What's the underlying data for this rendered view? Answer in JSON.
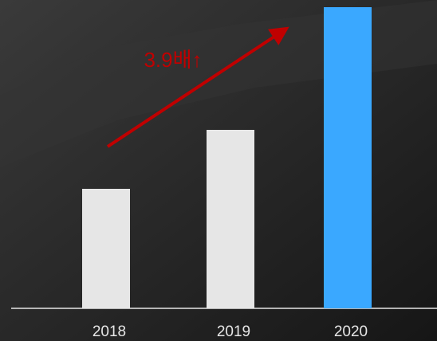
{
  "chart_data": {
    "type": "bar",
    "annotation": "3.9배↑",
    "categories": [
      "2018",
      "2019",
      "2020"
    ],
    "values": [
      150,
      224,
      378
    ],
    "colors": [
      "#e6e6e6",
      "#e6e6e6",
      "#3aa8ff"
    ],
    "ylim": [
      0,
      378
    ]
  }
}
